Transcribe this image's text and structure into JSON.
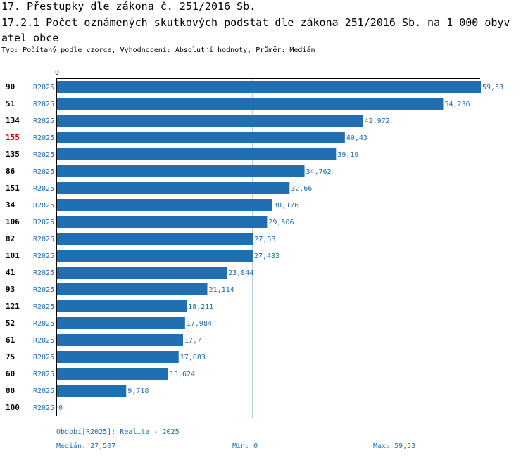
{
  "chart_data": {
    "type": "bar",
    "orientation": "horizontal",
    "title": "17. Přestupky dle zákona č. 251/2016 Sb.",
    "subtitle": "17.2.1 Počet oznámených skutkových podstat dle zákona 251/2016 Sb. na 1 000 obyvatel obce",
    "type_line": "Typ: Počítaný podle vzorce, Vyhodnocení: Absolutní hodnoty, Průměr: Medián",
    "axis_zero_label": "0",
    "xlim": [
      0,
      59.53
    ],
    "median_value": 27.507,
    "series_label": "R2025",
    "categories": [
      "90",
      "51",
      "134",
      "155",
      "135",
      "86",
      "151",
      "34",
      "106",
      "82",
      "101",
      "41",
      "93",
      "121",
      "52",
      "61",
      "75",
      "60",
      "88",
      "100"
    ],
    "values": [
      59.53,
      54.236,
      42.972,
      40.43,
      39.19,
      34.762,
      32.66,
      30.176,
      29.506,
      27.53,
      27.483,
      23.844,
      21.114,
      18.211,
      17.984,
      17.7,
      17.083,
      15.624,
      9.718,
      0
    ],
    "value_labels": [
      "59,53",
      "54,236",
      "42,972",
      "40,43",
      "39,19",
      "34,762",
      "32,66",
      "30,176",
      "29,506",
      "27,53",
      "27,483",
      "23,844",
      "21,114",
      "18,211",
      "17,984",
      "17,7",
      "17,083",
      "15,624",
      "9,718",
      "0"
    ],
    "highlight_category": "155"
  },
  "footer": {
    "period": "Období[R2025]: Realita - 2025",
    "median": "Medián: 27,507",
    "min": "Min: 0",
    "max": "Max: 59,53"
  },
  "colors": {
    "bar": "#1f6fb2",
    "label_blue": "#1f6fb2",
    "highlight": "#cc0000",
    "axis": "#000000"
  }
}
